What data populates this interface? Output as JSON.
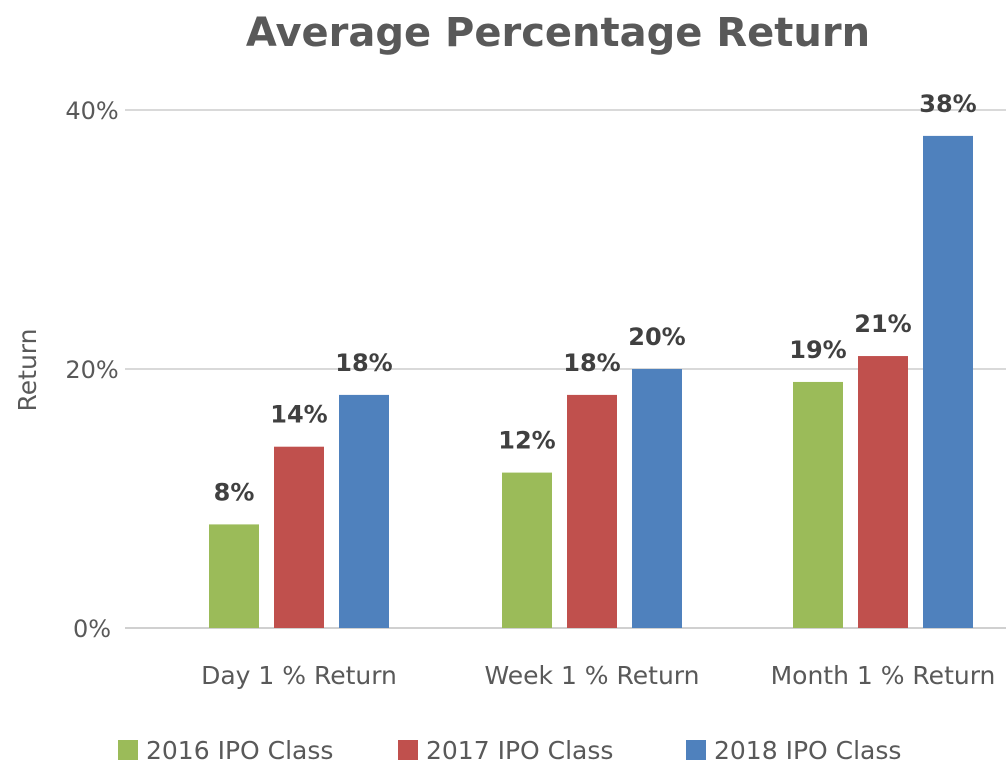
{
  "chart_data": {
    "type": "bar",
    "title": "Average Percentage Return",
    "ylabel": "Return",
    "xlabel": "",
    "categories": [
      "Day 1 % Return",
      "Week 1 % Return",
      "Month 1 % Return"
    ],
    "series": [
      {
        "name": "2016 IPO Class",
        "color": "#9bbb59",
        "values": [
          8,
          12,
          19
        ],
        "labels": [
          "8%",
          "12%",
          "19%"
        ]
      },
      {
        "name": "2017 IPO Class",
        "color": "#c0504d",
        "values": [
          14,
          18,
          21
        ],
        "labels": [
          "14%",
          "18%",
          "21%"
        ]
      },
      {
        "name": "2018 IPO Class",
        "color": "#4f81bd",
        "values": [
          18,
          20,
          38
        ],
        "labels": [
          "18%",
          "20%",
          "38%"
        ]
      }
    ],
    "ylim": [
      0,
      40
    ],
    "yticks": [
      0,
      20,
      40
    ],
    "ytick_labels": [
      "0%",
      "20%",
      "40%"
    ],
    "grid": true,
    "legend_position": "bottom"
  }
}
